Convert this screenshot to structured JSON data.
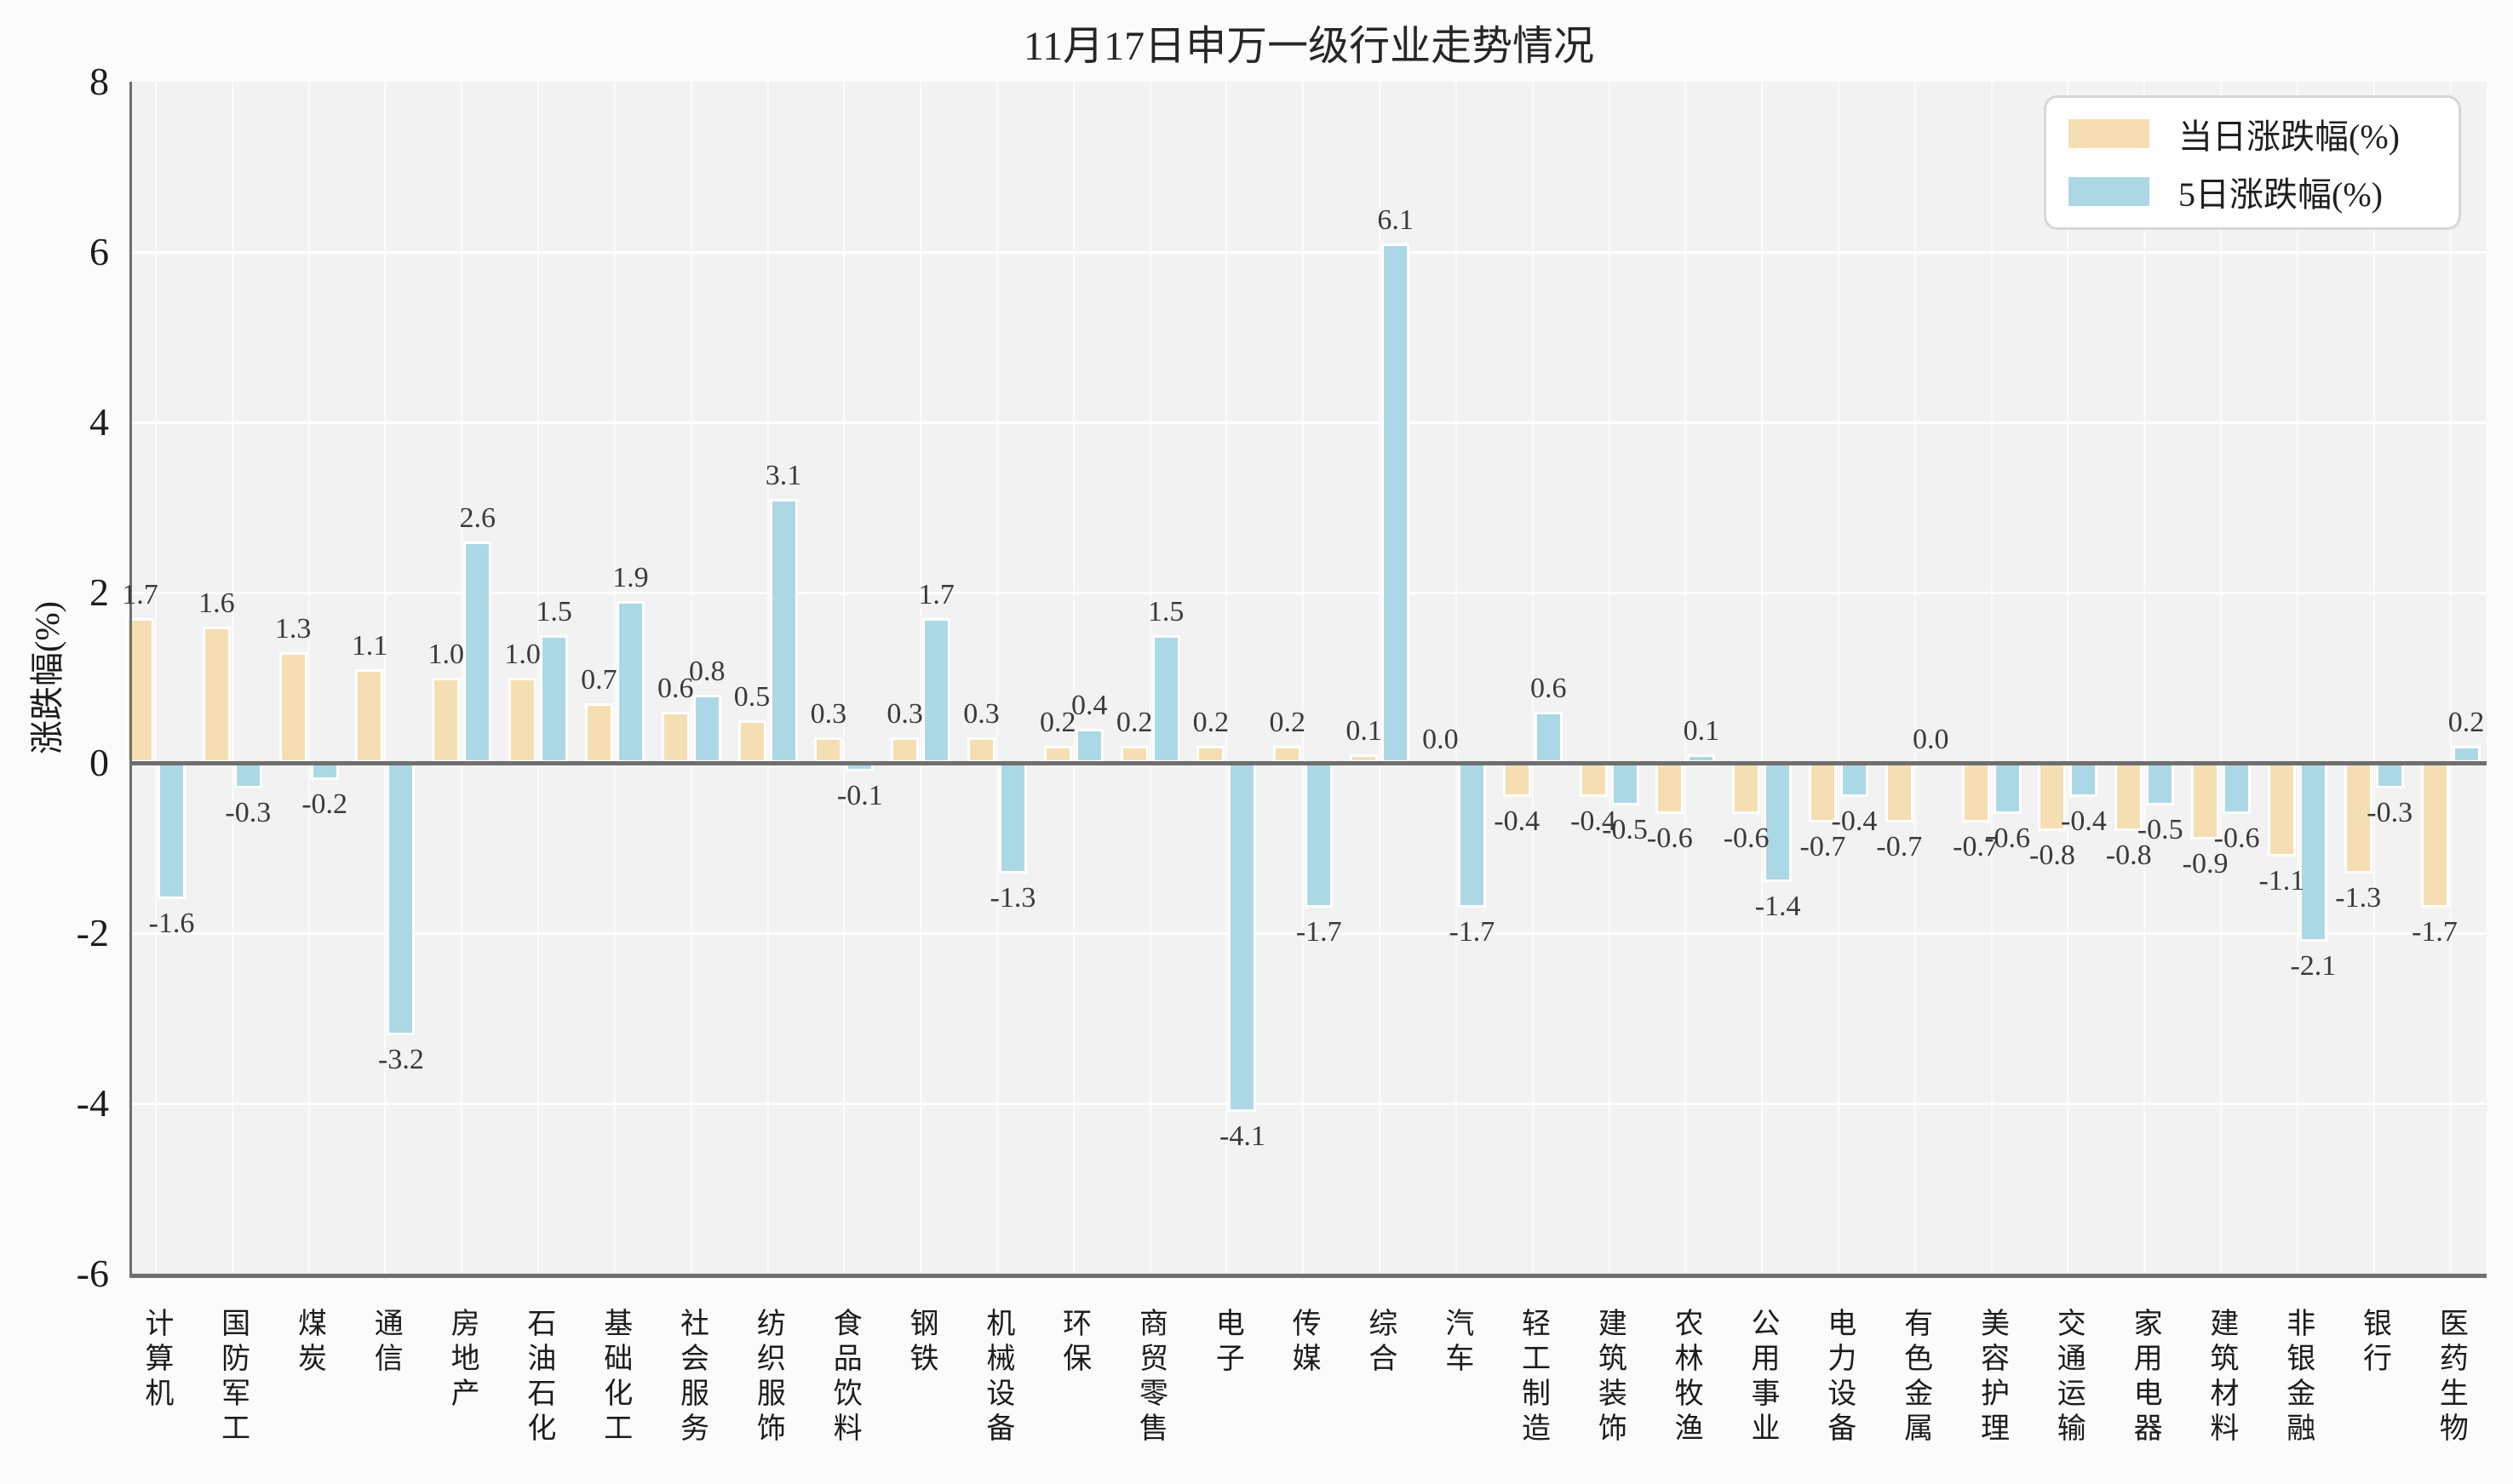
{
  "chart_data": {
    "type": "bar",
    "title": "11月17日申万一级行业走势情况",
    "ylabel": "涨跌幅(%)",
    "ylim": [
      -6,
      8
    ],
    "yticks": [
      8,
      6,
      4,
      2,
      0,
      -2,
      -4,
      -6
    ],
    "grid": "horizontal white gridlines on light gray panel, faint vertical gridlines at category centers",
    "legend_position": "upper right",
    "bar_value_labels": true,
    "categories": [
      "计算机",
      "国防军工",
      "煤炭",
      "通信",
      "房地产",
      "石油石化",
      "基础化工",
      "社会服务",
      "纺织服饰",
      "食品饮料",
      "钢铁",
      "机械设备",
      "环保",
      "商贸零售",
      "电子",
      "传媒",
      "综合",
      "汽车",
      "轻工制造",
      "建筑装饰",
      "农林牧渔",
      "公用事业",
      "电力设备",
      "有色金属",
      "美容护理",
      "交通运输",
      "家用电器",
      "建筑材料",
      "非银金融",
      "银行",
      "医药生物"
    ],
    "series": [
      {
        "name": "当日涨跌幅(%)",
        "color": "#F5DFB2",
        "values": [
          1.7,
          1.6,
          1.3,
          1.1,
          1.0,
          1.0,
          0.7,
          0.6,
          0.5,
          0.3,
          0.3,
          0.3,
          0.2,
          0.2,
          0.2,
          0.2,
          0.1,
          0.0,
          -0.4,
          -0.4,
          -0.6,
          -0.6,
          -0.7,
          -0.7,
          -0.7,
          -0.8,
          -0.8,
          -0.9,
          -1.1,
          -1.3,
          -1.7
        ]
      },
      {
        "name": "5日涨跌幅(%)",
        "color": "#ACD8E6",
        "values": [
          -1.6,
          -0.3,
          -0.2,
          -3.2,
          2.6,
          1.5,
          1.9,
          0.8,
          3.1,
          -0.1,
          1.7,
          -1.3,
          0.4,
          1.5,
          -4.1,
          -1.7,
          6.1,
          -1.7,
          0.6,
          -0.5,
          0.1,
          -1.4,
          -0.4,
          0.0,
          -0.6,
          -0.4,
          -0.5,
          -0.6,
          -2.1,
          -0.3,
          0.2
        ]
      }
    ]
  },
  "colors": {
    "figure_bg": "#FBFBFB",
    "panel_bg": "#F2F2F2",
    "gridline": "#FFFFFF",
    "zero_line": "#6E6E6E",
    "axis_spine": "#6E6E6E",
    "bar_edge": "#FFFFFF",
    "tick_text": "#1C1C1C",
    "value_label_text": "#3A3A3A",
    "legend_border": "#D7D7D7",
    "legend_bg": "#FFFFFF"
  }
}
